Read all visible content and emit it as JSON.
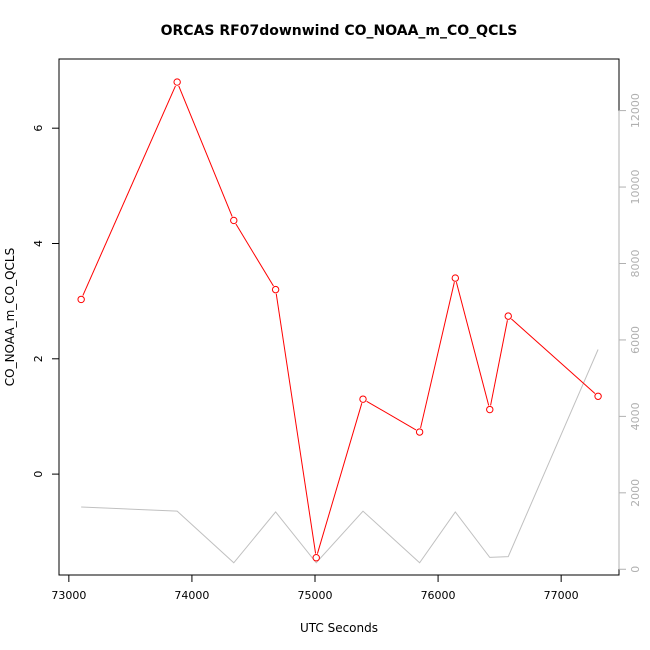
{
  "chart_data": {
    "type": "line",
    "title": "ORCAS RF07downwind CO_NOAA_m_CO_QCLS",
    "xlabel": "UTC Seconds",
    "ylabel": "CO_NOAA_m_CO_QCLS",
    "x_ticks": [
      73000,
      74000,
      75000,
      76000,
      77000
    ],
    "y_ticks": [
      0,
      2,
      4,
      6
    ],
    "y2_ticks": [
      0,
      2000,
      4000,
      6000,
      8000,
      10000,
      12000
    ],
    "xlim": [
      72920,
      77470
    ],
    "ylim": [
      -1.75,
      7.2
    ],
    "y2lim": [
      -150,
      13350
    ],
    "grid": false,
    "series": [
      {
        "axis": "left",
        "color": "#ff0000",
        "markers": "open-circle",
        "points": [
          [
            73100,
            3.03
          ],
          [
            73880,
            6.8
          ],
          [
            74340,
            4.4
          ],
          [
            74680,
            3.2
          ],
          [
            75010,
            -1.45
          ],
          [
            75390,
            1.3
          ],
          [
            75850,
            0.73
          ],
          [
            76140,
            3.4
          ],
          [
            76420,
            1.12
          ],
          [
            76570,
            2.74
          ],
          [
            77300,
            1.35
          ]
        ]
      },
      {
        "axis": "right",
        "color": "#c0c0c0",
        "markers": "none",
        "points": [
          [
            73100,
            1630
          ],
          [
            73880,
            1520
          ],
          [
            74340,
            170
          ],
          [
            74680,
            1500
          ],
          [
            75010,
            170
          ],
          [
            75390,
            1520
          ],
          [
            75850,
            170
          ],
          [
            76140,
            1500
          ],
          [
            76420,
            310
          ],
          [
            76570,
            330
          ],
          [
            77300,
            5750
          ]
        ]
      }
    ]
  }
}
